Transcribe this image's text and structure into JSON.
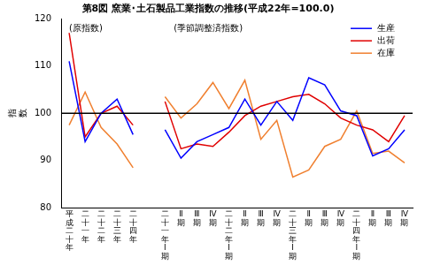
{
  "chart_data": {
    "type": "line",
    "title": "第8図 窯業･土石製品工業指数の推移(平成22年=100.0)",
    "y_label": "指数",
    "annotations": [
      "(原指数)",
      "(季節調整済指数)"
    ],
    "categories": [
      "平成二十年",
      "二十一年",
      "二十二年",
      "二十三年",
      "二十四年",
      null,
      "二十一年Ⅰ期",
      "Ⅱ期",
      "Ⅲ期",
      "Ⅳ期",
      "二十二年Ⅰ期",
      "Ⅱ期",
      "Ⅲ期",
      "Ⅳ期",
      "二十三年Ⅰ期",
      "Ⅱ期",
      "Ⅲ期",
      "Ⅳ期",
      "二十四年Ⅰ期",
      "Ⅱ期",
      "Ⅲ期",
      "Ⅳ期"
    ],
    "series": [
      {
        "name": "生産",
        "color": "#0000ff",
        "values": [
          111,
          94,
          100,
          103,
          95.5,
          null,
          96.5,
          90.5,
          94,
          95.5,
          97,
          103,
          97.5,
          102.5,
          98.5,
          107.5,
          106,
          100.5,
          99.5,
          91,
          92.5,
          96.5
        ]
      },
      {
        "name": "出荷",
        "color": "#e00000",
        "values": [
          117,
          95,
          100,
          101.5,
          97.5,
          null,
          102.5,
          92.5,
          93.5,
          93,
          96,
          99.5,
          101.5,
          102.5,
          103.5,
          104,
          102,
          99,
          97.5,
          96.5,
          94,
          99.5
        ]
      },
      {
        "name": "在庫",
        "color": "#f08030",
        "values": [
          97.5,
          104.5,
          97,
          93.5,
          88.5,
          null,
          103.5,
          99,
          102,
          106.5,
          101,
          107,
          94.5,
          98.5,
          86.5,
          88,
          93,
          94.5,
          100.5,
          91.5,
          92,
          89.5
        ]
      }
    ],
    "baseline": 100,
    "ylim": [
      80,
      120
    ],
    "yticks": [
      80,
      90,
      100,
      110,
      120
    ],
    "grid": false,
    "legend": "upper right"
  }
}
